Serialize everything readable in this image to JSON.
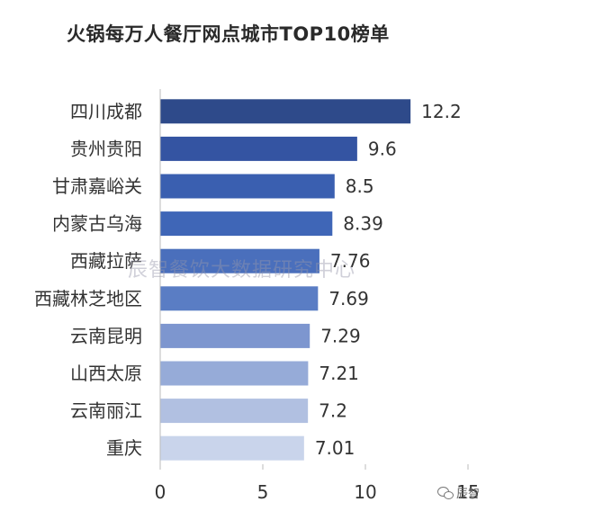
{
  "chart_data": {
    "type": "bar",
    "orientation": "horizontal",
    "title": "火锅每万人餐厅网点城市TOP10榜单",
    "categories": [
      "四川成都",
      "贵州贵阳",
      "甘肃嘉峪关",
      "内蒙古乌海",
      "西藏拉萨",
      "西藏林芝地区",
      "云南昆明",
      "山西太原",
      "云南丽江",
      "重庆"
    ],
    "values": [
      12.2,
      9.6,
      8.5,
      8.39,
      7.76,
      7.69,
      7.29,
      7.21,
      7.2,
      7.01
    ],
    "value_labels": [
      "12.2",
      "9.6",
      "8.5",
      "8.39",
      "7.76",
      "7.69",
      "7.29",
      "7.21",
      "7.2",
      "7.01"
    ],
    "x_ticks": [
      "0",
      "5",
      "10",
      "15"
    ],
    "xlim": [
      0,
      15
    ],
    "grid": false,
    "legend": "none",
    "bar_colors": [
      "#2e4a8a",
      "#3454a2",
      "#3a5fb0",
      "#3f66b7",
      "#4a6fbc",
      "#5a7dc4",
      "#7d96cf",
      "#96abd8",
      "#b1c0e1",
      "#c9d4eb"
    ]
  },
  "watermarks": {
    "background_text": "辰智餐饮大数据研究中心",
    "corner_text": "辰智"
  },
  "icons": {
    "corner": "wechat-icon"
  }
}
